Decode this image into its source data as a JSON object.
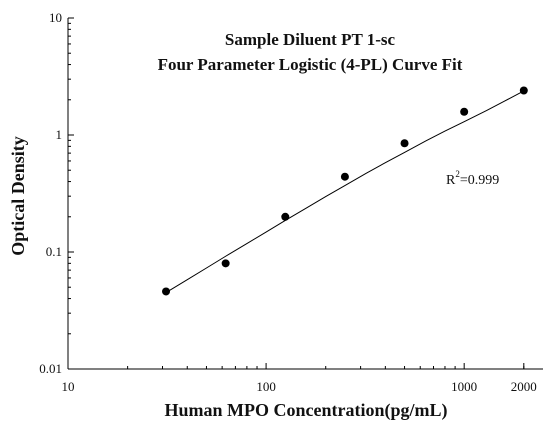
{
  "chart_data": {
    "type": "scatter",
    "title": "Sample Diluent PT 1-sc",
    "subtitle": "Four Parameter Logistic (4-PL) Curve Fit",
    "xlabel": "Human MPO Concentration(pg/mL)",
    "ylabel": "Optical Density",
    "x_scale": "log",
    "y_scale": "log",
    "xlim": [
      10,
      2500
    ],
    "ylim": [
      0.01,
      10
    ],
    "x_ticks": [
      10,
      100,
      1000,
      2000
    ],
    "x_tick_labels": [
      "10",
      "100",
      "1000",
      "2000"
    ],
    "y_ticks": [
      0.01,
      0.1,
      1,
      10
    ],
    "y_tick_labels": [
      "0.01",
      "0.1",
      "1",
      "10"
    ],
    "series": [
      {
        "x": [
          31.25,
          62.5,
          125,
          250,
          500,
          1000,
          2000
        ],
        "y": [
          0.046,
          0.08,
          0.2,
          0.44,
          0.85,
          1.58,
          2.4
        ]
      }
    ],
    "fit_curve": {
      "model": "4-PL",
      "x": [
        31.25,
        40,
        50,
        62.5,
        80,
        100,
        125,
        160,
        200,
        250,
        320,
        400,
        500,
        640,
        800,
        1000,
        1300,
        1600,
        2000
      ],
      "y": [
        0.045,
        0.058,
        0.073,
        0.092,
        0.118,
        0.148,
        0.186,
        0.238,
        0.298,
        0.37,
        0.47,
        0.58,
        0.71,
        0.89,
        1.08,
        1.3,
        1.62,
        1.95,
        2.38
      ]
    },
    "annotation": {
      "base": "R",
      "superscript": "2",
      "text": "=0.999"
    },
    "grid": false,
    "legend": "none",
    "colors": {
      "marker": "#000000",
      "line": "#000000",
      "axis": "#000000"
    }
  }
}
